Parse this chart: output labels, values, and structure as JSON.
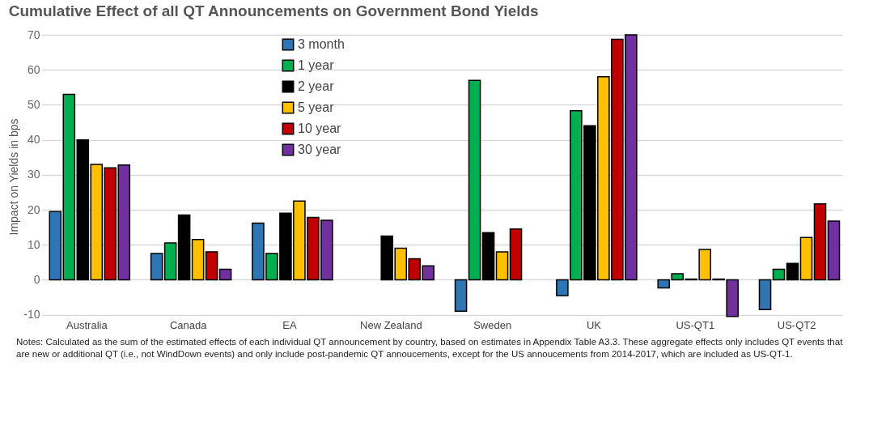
{
  "chart_data": {
    "type": "bar",
    "title": "Cumulative Effect of all QT Announcements on Government Bond Yields",
    "ylabel": "Impact on Yields in bps",
    "categories": [
      "Australia",
      "Canada",
      "EA",
      "New Zealand",
      "Sweden",
      "UK",
      "US-QT1",
      "US-QT2"
    ],
    "series": [
      {
        "name": "3 month",
        "color": "#2e75b6",
        "values": [
          19.5,
          7.5,
          16.2,
          null,
          -9,
          -4.5,
          -2.3,
          -8.5
        ]
      },
      {
        "name": "1 year",
        "color": "#00b050",
        "values": [
          53,
          10.5,
          7.5,
          null,
          57,
          48.3,
          1.7,
          3
        ]
      },
      {
        "name": "2 year",
        "color": "#000000",
        "values": [
          40,
          18.5,
          19,
          12.5,
          13.5,
          44,
          0.2,
          4.7
        ]
      },
      {
        "name": "5 year",
        "color": "#ffc000",
        "values": [
          33,
          11.5,
          22.5,
          9,
          8,
          58,
          8.7,
          12.1
        ]
      },
      {
        "name": "10 year",
        "color": "#c00000",
        "values": [
          32,
          8,
          17.8,
          6,
          14.5,
          68.7,
          0.2,
          21.7
        ]
      },
      {
        "name": "30 year",
        "color": "#7030a0",
        "values": [
          32.8,
          3,
          17,
          4,
          null,
          70,
          -10.5,
          16.8
        ]
      }
    ],
    "ylim": [
      -11,
      70
    ],
    "yticks": [
      -10,
      0,
      10,
      20,
      30,
      40,
      50,
      60,
      70
    ],
    "grid": "y",
    "legend": "top",
    "annotations": [
      "Notes: Calculated as the sum of the estimated effects of each individual QT announcement by country, based on estimates in Appendix Table A3.3. These aggregate effects only includes QT events that are new or additional QT (i.e., not WindDown events) and only include post-pandemic QT annoucements, except for the US annoucements from 2014-2017, which are included as US-QT-1."
    ]
  }
}
